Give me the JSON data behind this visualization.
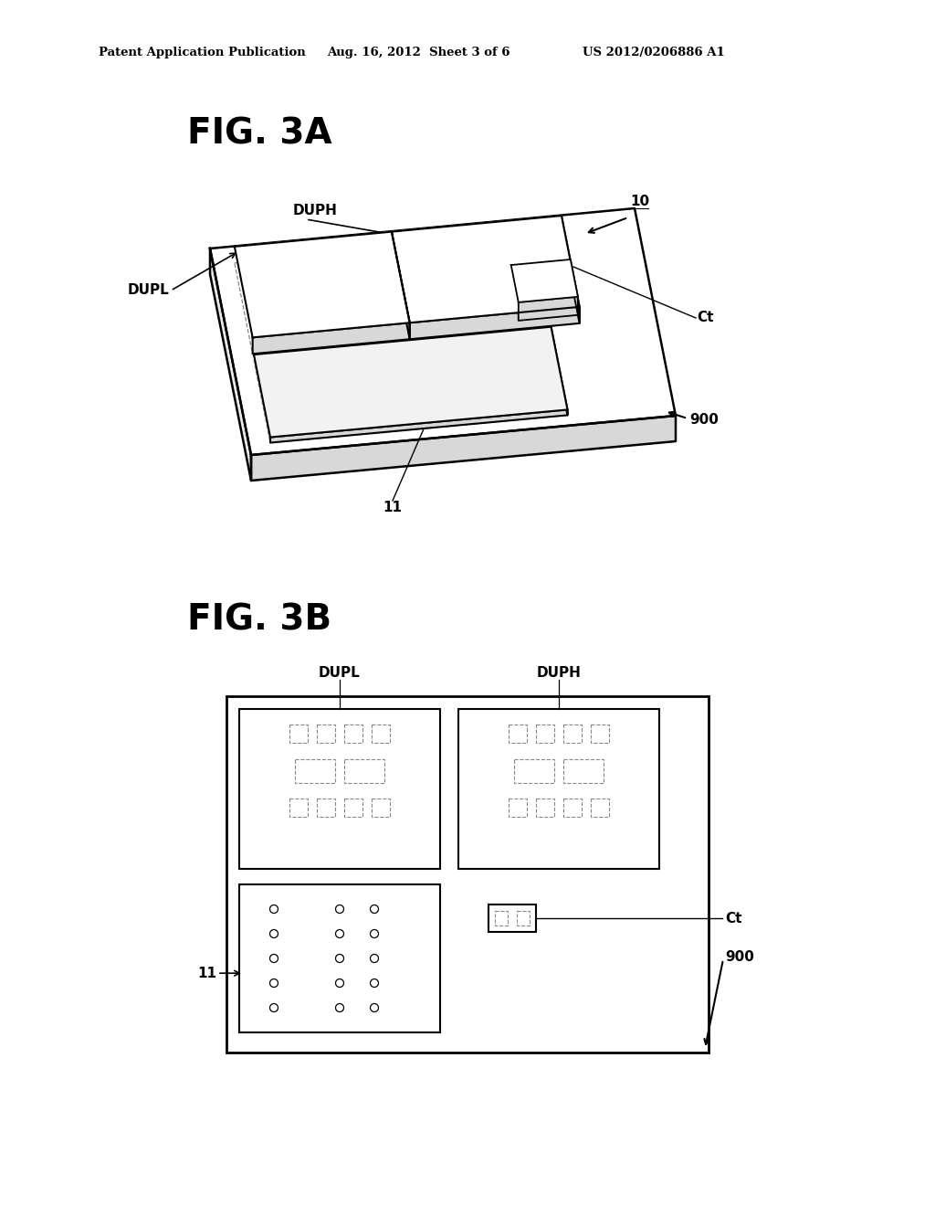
{
  "bg_color": "#ffffff",
  "header_left": "Patent Application Publication",
  "header_mid": "Aug. 16, 2012  Sheet 3 of 6",
  "header_right": "US 2012/0206886 A1",
  "fig3a_title": "FIG. 3A",
  "fig3b_title": "FIG. 3B",
  "line_color": "#000000",
  "dashed_color": "#888888"
}
